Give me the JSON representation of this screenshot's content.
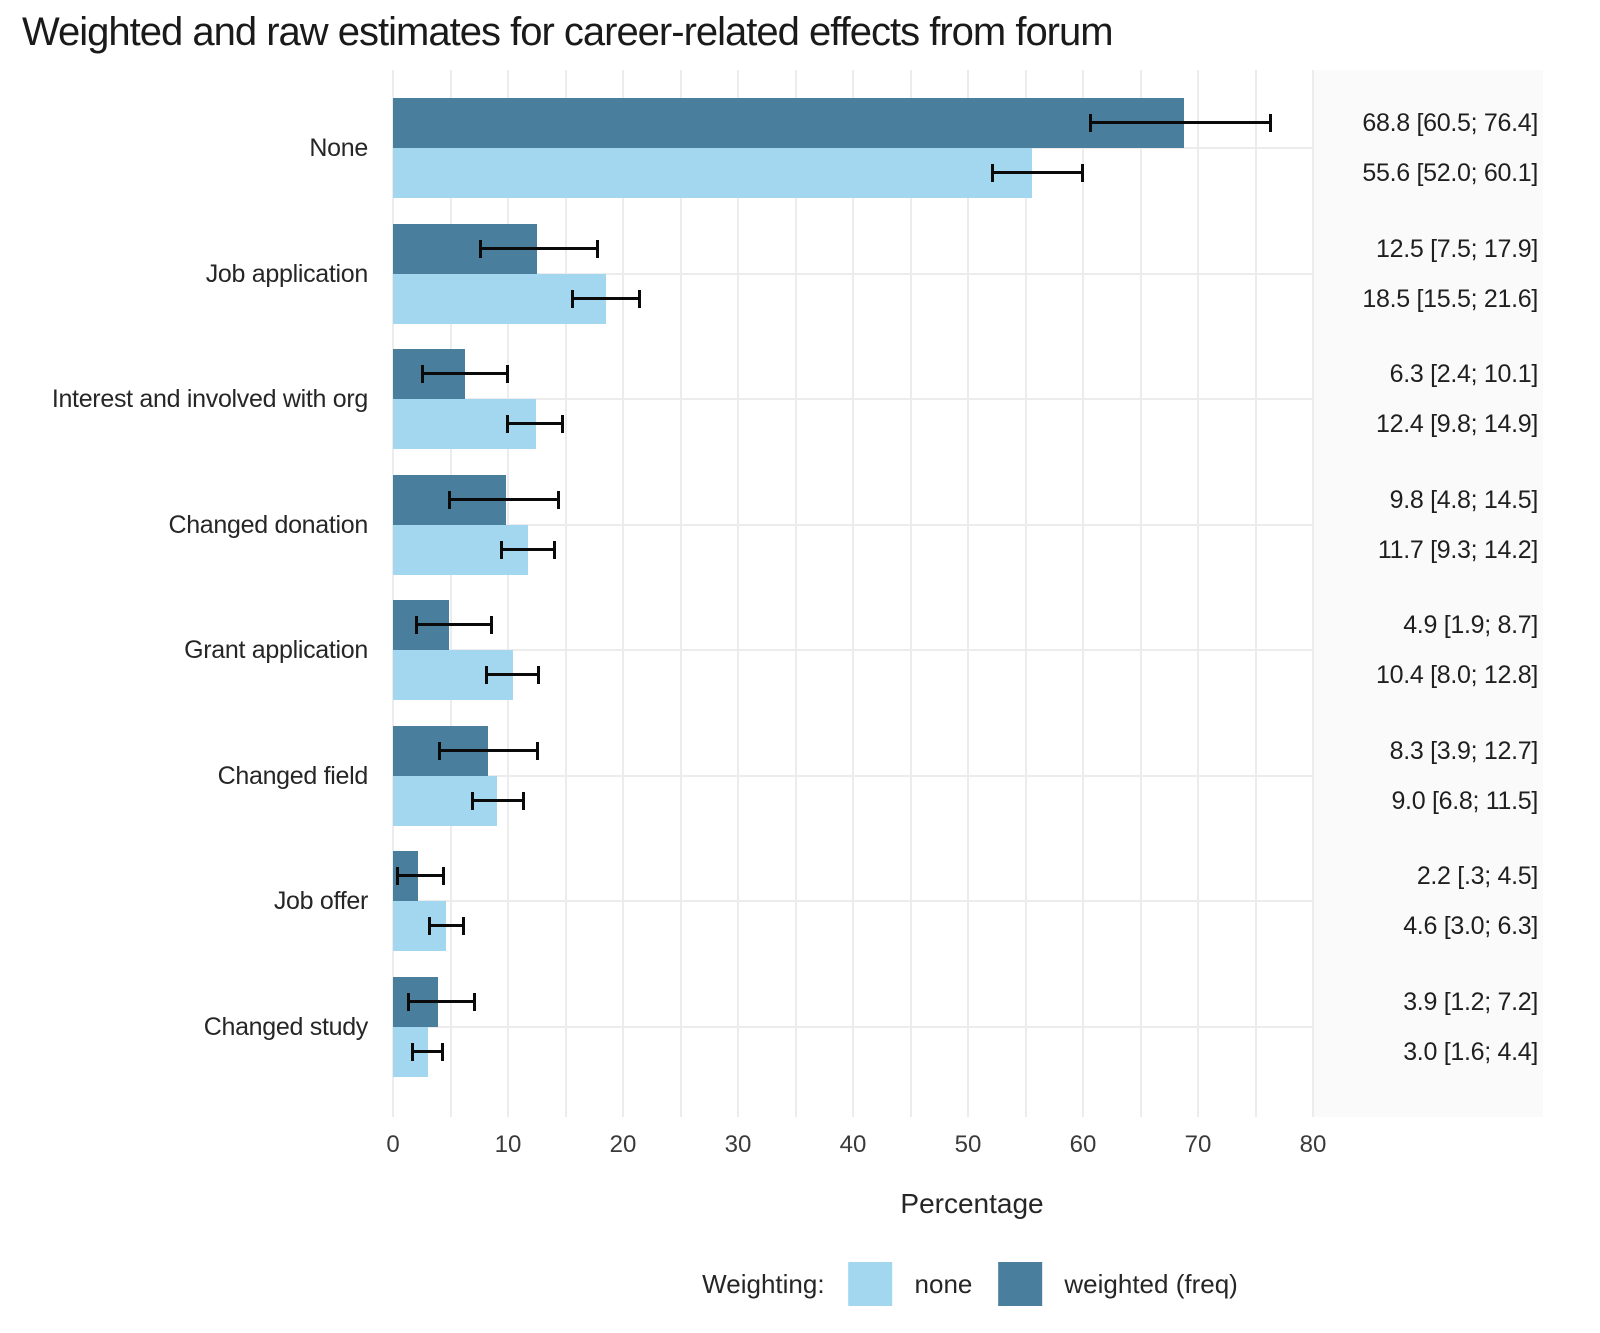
{
  "chart_data": {
    "type": "bar",
    "orientation": "horizontal",
    "title": "Weighted and raw estimates for career-related effects from forum",
    "xlabel": "Percentage",
    "xlim": [
      0,
      80
    ],
    "xticks": [
      0,
      10,
      20,
      30,
      40,
      50,
      60,
      70,
      80
    ],
    "grid": {
      "vertical_every": 5,
      "horizontal": "category-centers",
      "grid_on": true
    },
    "legend_position": "bottom",
    "categories": [
      "None",
      "Job application",
      "Interest and involved with org",
      "Changed donation",
      "Grant application",
      "Changed field",
      "Job offer",
      "Changed study"
    ],
    "series": [
      {
        "name": "weighted (freq)",
        "color_key": "dark",
        "values": [
          68.8,
          12.5,
          6.3,
          9.8,
          4.9,
          8.3,
          2.2,
          3.9
        ],
        "ci": [
          [
            60.5,
            76.4
          ],
          [
            7.5,
            17.9
          ],
          [
            2.4,
            10.1
          ],
          [
            4.8,
            14.5
          ],
          [
            1.9,
            8.7
          ],
          [
            3.9,
            12.7
          ],
          [
            0.3,
            4.5
          ],
          [
            1.2,
            7.2
          ]
        ],
        "labels": [
          "68.8 [60.5; 76.4]",
          "12.5 [7.5; 17.9]",
          "6.3 [2.4; 10.1]",
          "9.8 [4.8; 14.5]",
          "4.9 [1.9; 8.7]",
          "8.3 [3.9; 12.7]",
          "2.2 [.3; 4.5]",
          "3.9 [1.2; 7.2]"
        ]
      },
      {
        "name": "none",
        "color_key": "light",
        "values": [
          55.6,
          18.5,
          12.4,
          11.7,
          10.4,
          9.0,
          4.6,
          3.0
        ],
        "ci": [
          [
            52.0,
            60.1
          ],
          [
            15.5,
            21.6
          ],
          [
            9.8,
            14.9
          ],
          [
            9.3,
            14.2
          ],
          [
            8.0,
            12.8
          ],
          [
            6.8,
            11.5
          ],
          [
            3.0,
            6.3
          ],
          [
            1.6,
            4.4
          ]
        ],
        "labels": [
          "55.6 [52.0; 60.1]",
          "18.5 [15.5; 21.6]",
          "12.4 [9.8; 14.9]",
          "11.7 [9.3; 14.2]",
          "10.4 [8.0; 12.8]",
          "9.0 [6.8; 11.5]",
          "4.6 [3.0; 6.3]",
          "3.0 [1.6; 4.4]"
        ]
      }
    ],
    "legend": {
      "title": "Weighting:",
      "entries": [
        {
          "label": "none",
          "color_key": "light"
        },
        {
          "label": "weighted (freq)",
          "color_key": "dark"
        }
      ]
    }
  },
  "colors": {
    "light": "#A3D7F0",
    "dark": "#4A7E9D",
    "grid": "#ECECEC",
    "panel_bg": "#FAFAFA",
    "error_bar": "#0A0A0A",
    "title_text": "#1A1A1A",
    "label_text": "#262626"
  }
}
